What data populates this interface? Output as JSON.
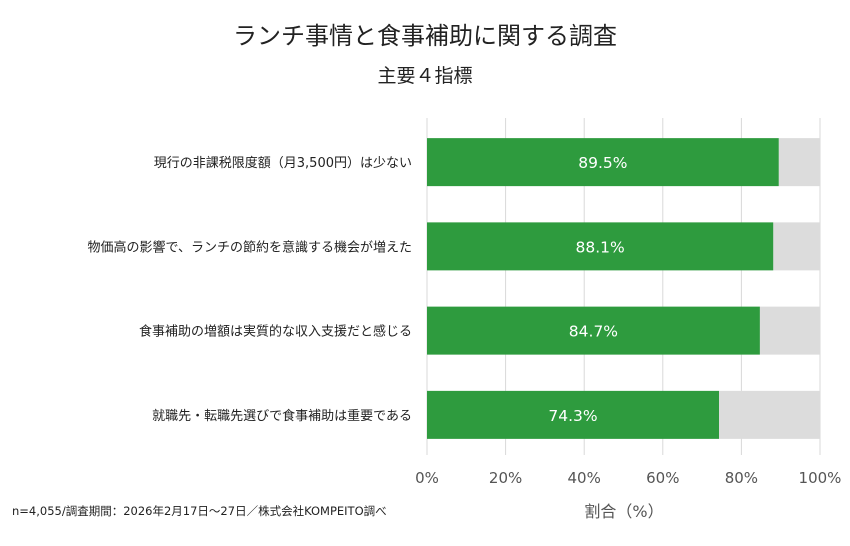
{
  "title": "ランチ事情と食事補助に関する調査",
  "subtitle": "主要４指標",
  "footnote": "n=4,055/調査期間：2026年2月17日〜27日／株式会社KOMPEITO調べ",
  "colors": {
    "bar": "#2e9b3e",
    "remainder": "#dcdcdc",
    "grid": "#d9d9d9",
    "label": "#ffffff"
  },
  "chart_data": {
    "type": "bar",
    "orientation": "horizontal",
    "stacked_to_100": true,
    "categories": [
      "現行の非課税限度額（月3,500円）は少ない",
      "物価高の影響で、ランチの節約を意識する機会が増えた",
      "食事補助の増額は実質的な収入支援だと感じる",
      "就職先・転職先選びで食事補助は重要である"
    ],
    "values": [
      89.5,
      88.1,
      84.7,
      74.3
    ],
    "data_labels": [
      "89.5%",
      "88.1%",
      "84.7%",
      "74.3%"
    ],
    "xlabel": "割合（%）",
    "ylabel": "",
    "xlim": [
      0,
      100
    ],
    "xticks": [
      0,
      20,
      40,
      60,
      80,
      100
    ],
    "xtick_labels": [
      "0%",
      "20%",
      "40%",
      "60%",
      "80%",
      "100%"
    ],
    "grid": "vertical",
    "legend": "none"
  }
}
